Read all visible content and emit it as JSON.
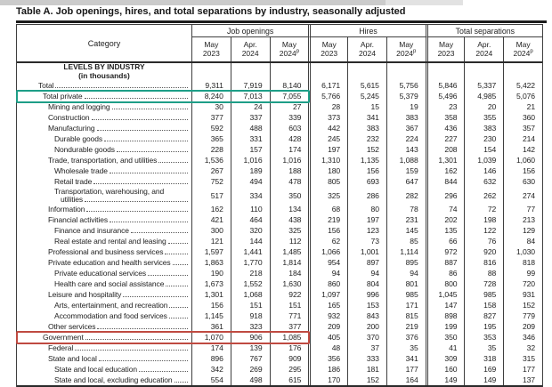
{
  "page": {
    "title": "Table A. Job openings, hires, and total separations by industry, seasonally adjusted"
  },
  "colors": {
    "highlight_teal": "#1e9e87",
    "highlight_red": "#bf4a41"
  },
  "table": {
    "category_header": "Category",
    "groups": [
      {
        "label": "Job openings"
      },
      {
        "label": "Hires"
      },
      {
        "label": "Total separations"
      }
    ],
    "sub_columns": [
      {
        "month": "May",
        "year": "2023",
        "sup": ""
      },
      {
        "month": "Apr.",
        "year": "2024",
        "sup": ""
      },
      {
        "month": "May",
        "year": "2024",
        "sup": "p"
      }
    ],
    "section_heading": {
      "line1": "LEVELS BY INDUSTRY",
      "line2": "(in thousands)"
    },
    "rows": [
      {
        "label": "Total",
        "indent": 0,
        "highlight": "",
        "values": [
          "9,311",
          "7,919",
          "8,140",
          "6,171",
          "5,615",
          "5,756",
          "5,846",
          "5,337",
          "5,422"
        ]
      },
      {
        "label": "Total private",
        "indent": 1,
        "highlight": "teal",
        "values": [
          "8,240",
          "7,013",
          "7,055",
          "5,766",
          "5,245",
          "5,379",
          "5,496",
          "4,985",
          "5,076"
        ]
      },
      {
        "label": "Mining and logging",
        "indent": 2,
        "highlight": "",
        "values": [
          "30",
          "24",
          "27",
          "28",
          "15",
          "19",
          "23",
          "20",
          "21"
        ]
      },
      {
        "label": "Construction",
        "indent": 2,
        "highlight": "",
        "values": [
          "377",
          "337",
          "339",
          "373",
          "341",
          "383",
          "358",
          "355",
          "360"
        ]
      },
      {
        "label": "Manufacturing",
        "indent": 2,
        "highlight": "",
        "values": [
          "592",
          "488",
          "603",
          "442",
          "383",
          "367",
          "436",
          "383",
          "357"
        ]
      },
      {
        "label": "Durable goods",
        "indent": 3,
        "highlight": "",
        "values": [
          "365",
          "331",
          "428",
          "245",
          "232",
          "224",
          "227",
          "230",
          "214"
        ]
      },
      {
        "label": "Nondurable goods",
        "indent": 3,
        "highlight": "",
        "values": [
          "228",
          "157",
          "174",
          "197",
          "152",
          "143",
          "208",
          "154",
          "142"
        ]
      },
      {
        "label": "Trade, transportation, and utilities",
        "indent": 2,
        "highlight": "",
        "values": [
          "1,536",
          "1,016",
          "1,016",
          "1,310",
          "1,135",
          "1,088",
          "1,301",
          "1,039",
          "1,060"
        ]
      },
      {
        "label": "Wholesale trade",
        "indent": 3,
        "highlight": "",
        "values": [
          "267",
          "189",
          "188",
          "180",
          "156",
          "159",
          "162",
          "146",
          "156"
        ]
      },
      {
        "label": "Retail trade",
        "indent": 3,
        "highlight": "",
        "values": [
          "752",
          "494",
          "478",
          "805",
          "693",
          "647",
          "844",
          "632",
          "630"
        ]
      },
      {
        "label": "Transportation, warehousing, and",
        "label2": "utilities",
        "indent": 3,
        "highlight": "",
        "values": [
          "517",
          "334",
          "350",
          "325",
          "286",
          "282",
          "296",
          "262",
          "274"
        ]
      },
      {
        "label": "Information",
        "indent": 2,
        "highlight": "",
        "values": [
          "162",
          "110",
          "134",
          "68",
          "80",
          "78",
          "74",
          "72",
          "77"
        ]
      },
      {
        "label": "Financial activities",
        "indent": 2,
        "highlight": "",
        "values": [
          "421",
          "464",
          "438",
          "219",
          "197",
          "231",
          "202",
          "198",
          "213"
        ]
      },
      {
        "label": "Finance and insurance",
        "indent": 3,
        "highlight": "",
        "values": [
          "300",
          "320",
          "325",
          "156",
          "123",
          "145",
          "135",
          "122",
          "129"
        ]
      },
      {
        "label": "Real estate and rental and leasing",
        "indent": 3,
        "highlight": "",
        "values": [
          "121",
          "144",
          "112",
          "62",
          "73",
          "85",
          "66",
          "76",
          "84"
        ]
      },
      {
        "label": "Professional and business services",
        "indent": 2,
        "highlight": "",
        "values": [
          "1,597",
          "1,441",
          "1,485",
          "1,066",
          "1,001",
          "1,114",
          "972",
          "920",
          "1,030"
        ]
      },
      {
        "label": "Private education and health services",
        "indent": 2,
        "highlight": "",
        "values": [
          "1,863",
          "1,770",
          "1,814",
          "954",
          "897",
          "895",
          "887",
          "816",
          "818"
        ]
      },
      {
        "label": "Private educational services",
        "indent": 3,
        "highlight": "",
        "values": [
          "190",
          "218",
          "184",
          "94",
          "94",
          "94",
          "86",
          "88",
          "99"
        ]
      },
      {
        "label": "Health care and social assistance",
        "indent": 3,
        "highlight": "",
        "values": [
          "1,673",
          "1,552",
          "1,630",
          "860",
          "804",
          "801",
          "800",
          "728",
          "720"
        ]
      },
      {
        "label": "Leisure and hospitality",
        "indent": 2,
        "highlight": "",
        "values": [
          "1,301",
          "1,068",
          "922",
          "1,097",
          "996",
          "985",
          "1,045",
          "985",
          "931"
        ]
      },
      {
        "label": "Arts, entertainment, and recreation",
        "indent": 3,
        "highlight": "",
        "values": [
          "156",
          "151",
          "151",
          "165",
          "153",
          "171",
          "147",
          "158",
          "152"
        ]
      },
      {
        "label": "Accommodation and food services",
        "indent": 3,
        "highlight": "",
        "values": [
          "1,145",
          "918",
          "771",
          "932",
          "843",
          "815",
          "898",
          "827",
          "779"
        ]
      },
      {
        "label": "Other services",
        "indent": 2,
        "highlight": "",
        "values": [
          "361",
          "323",
          "377",
          "209",
          "200",
          "219",
          "199",
          "195",
          "209"
        ]
      },
      {
        "label": "Government",
        "indent": 1,
        "highlight": "red",
        "values": [
          "1,070",
          "906",
          "1,085",
          "405",
          "370",
          "376",
          "350",
          "353",
          "346"
        ]
      },
      {
        "label": "Federal",
        "indent": 2,
        "highlight": "",
        "values": [
          "174",
          "139",
          "176",
          "48",
          "37",
          "35",
          "41",
          "35",
          "32"
        ]
      },
      {
        "label": "State and local",
        "indent": 2,
        "highlight": "",
        "values": [
          "896",
          "767",
          "909",
          "356",
          "333",
          "341",
          "309",
          "318",
          "315"
        ]
      },
      {
        "label": "State and local education",
        "indent": 3,
        "highlight": "",
        "values": [
          "342",
          "269",
          "295",
          "186",
          "181",
          "177",
          "160",
          "169",
          "177"
        ]
      },
      {
        "label": "State and local, excluding education",
        "indent": 3,
        "highlight": "",
        "values": [
          "554",
          "498",
          "615",
          "170",
          "152",
          "164",
          "149",
          "149",
          "137"
        ]
      }
    ]
  }
}
